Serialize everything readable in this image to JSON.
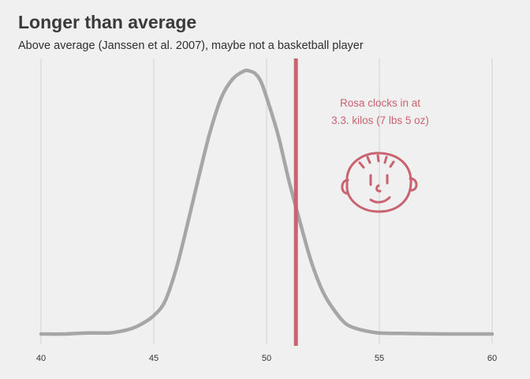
{
  "chart_data": {
    "type": "line",
    "title": "Longer than average",
    "subtitle": "Above average (Janssen et al. 2007), maybe not a basketball player",
    "xlabel": "",
    "ylabel": "",
    "xlim": [
      40,
      60
    ],
    "ylim": [
      0,
      1
    ],
    "x_ticks": [
      40,
      45,
      50,
      55,
      60
    ],
    "x_tick_labels": [
      "40",
      "45",
      "50",
      "55",
      "60"
    ],
    "grid": "vertical",
    "series": [
      {
        "color": "#a6a6a6",
        "x": [
          40,
          41,
          42,
          43,
          43.5,
          44,
          44.5,
          45,
          45.5,
          46,
          46.5,
          47,
          47.5,
          48,
          48.5,
          49,
          49.25,
          49.5,
          49.75,
          50,
          50.5,
          51,
          51.5,
          52,
          52.5,
          53,
          53.5,
          54,
          54.5,
          55,
          56,
          57,
          58,
          59,
          60
        ],
        "y": [
          0.0,
          0.0,
          0.004,
          0.004,
          0.01,
          0.02,
          0.04,
          0.07,
          0.125,
          0.25,
          0.42,
          0.6,
          0.77,
          0.9,
          0.97,
          1.0,
          1.0,
          0.99,
          0.96,
          0.9,
          0.76,
          0.58,
          0.42,
          0.27,
          0.16,
          0.09,
          0.04,
          0.02,
          0.01,
          0.004,
          0.002,
          0.001,
          0.0,
          0.0,
          0.0
        ]
      }
    ],
    "marker_line": {
      "x": 51.3,
      "color": "#c9636f"
    },
    "annotation": {
      "lines": [
        "Rosa clocks in at",
        "3.3. kilos (7 lbs 5 oz)"
      ],
      "color": "#c9636f"
    },
    "baby_face_icon": "baby-face-doodle"
  }
}
